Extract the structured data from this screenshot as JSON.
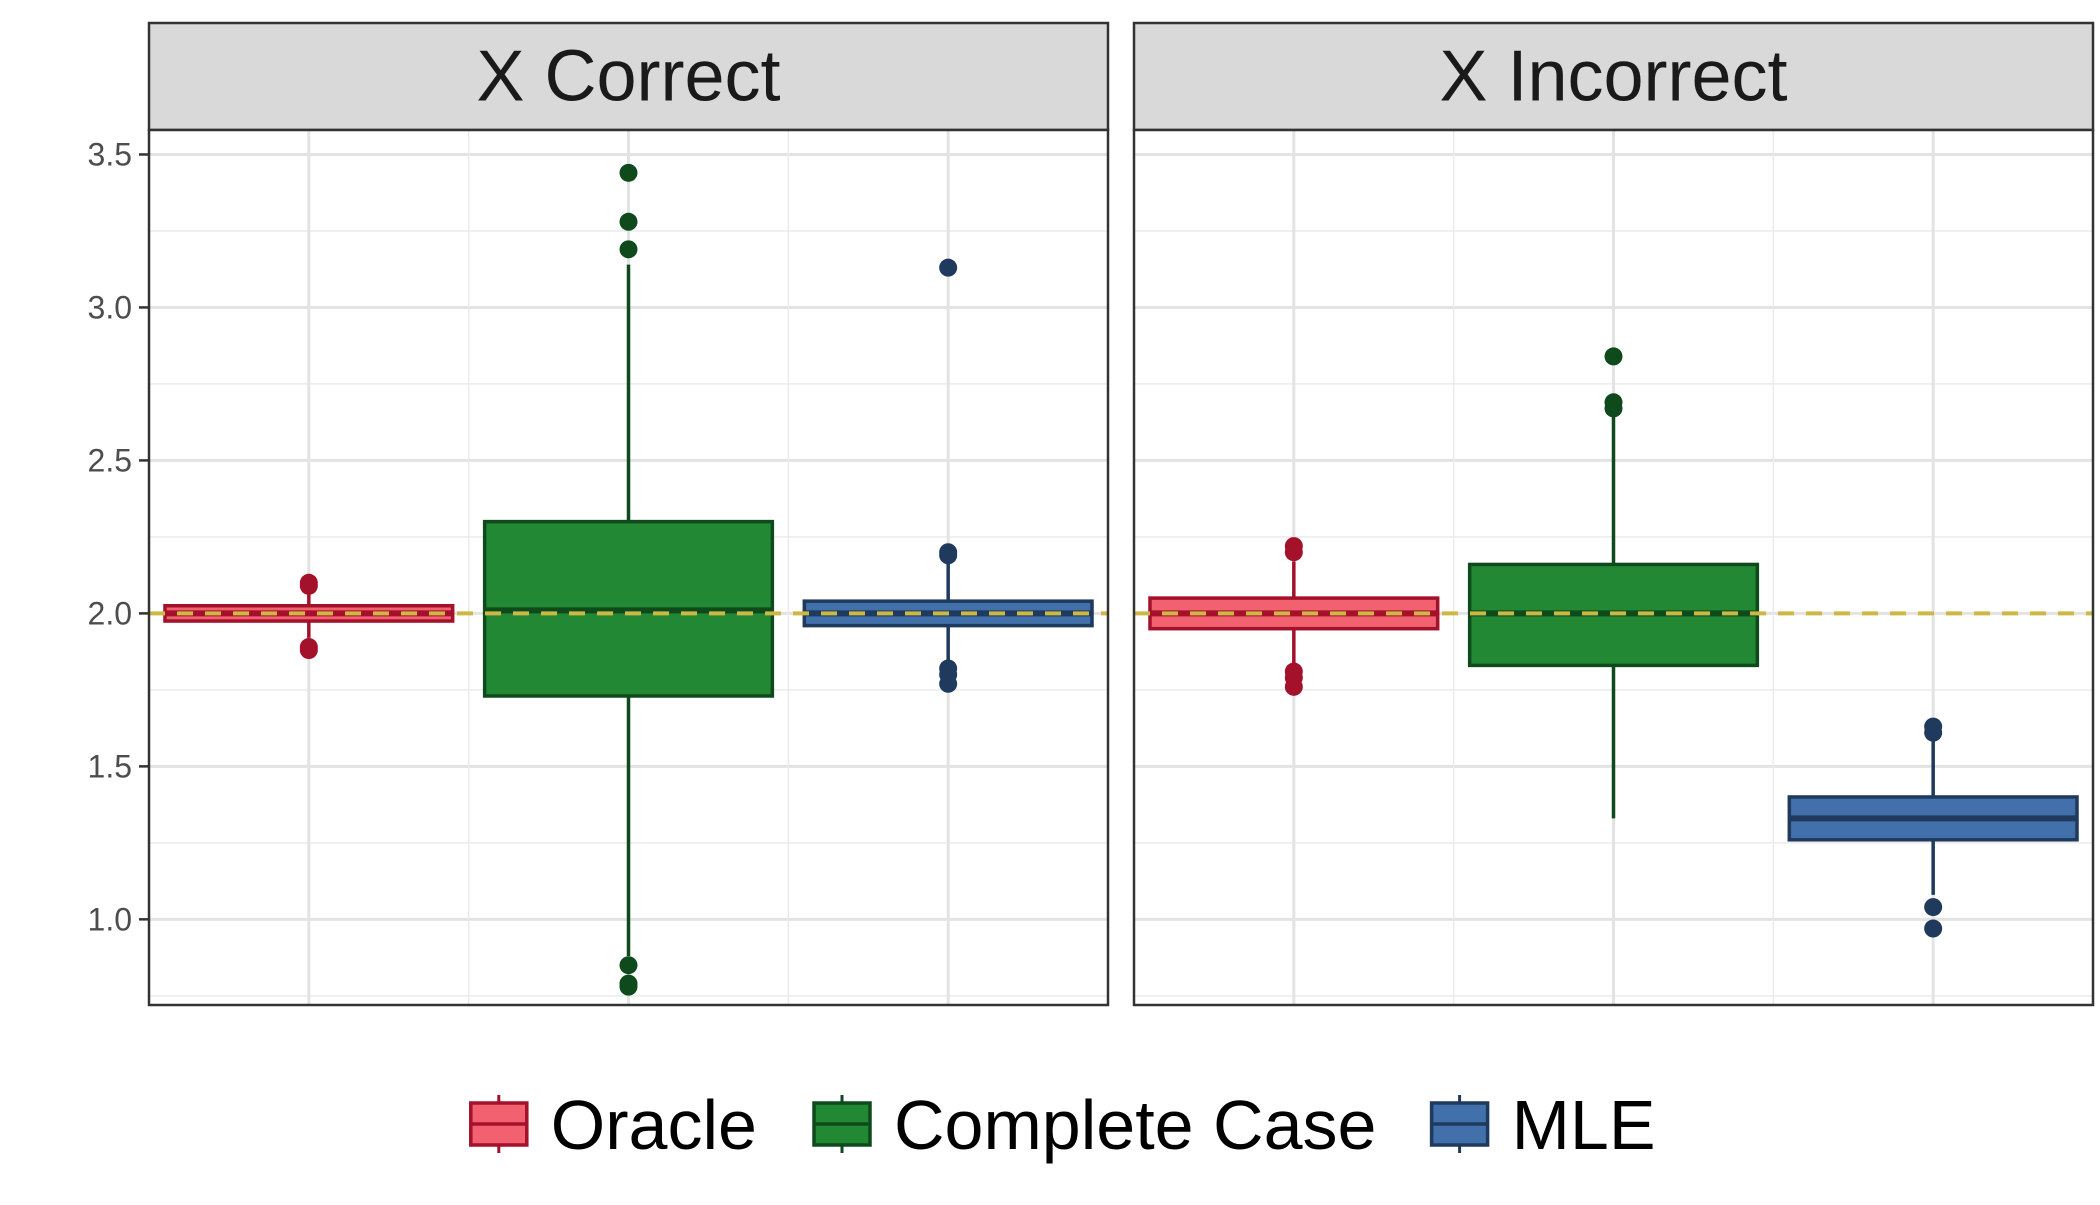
{
  "chart_data": {
    "type": "boxplot",
    "ylim": [
      0.72,
      3.58
    ],
    "y_ticks": [
      "1.0",
      "1.5",
      "2.0",
      "2.5",
      "3.0",
      "3.5"
    ],
    "grid": true,
    "reference_line": {
      "y": 2.0,
      "style": "dashed",
      "color": "#CDB844"
    },
    "legend": {
      "position": "bottom",
      "entries": [
        {
          "label": "Oracle",
          "fill": "#F2616F",
          "stroke": "#A3112A"
        },
        {
          "label": "Complete Case",
          "fill": "#228833",
          "stroke": "#0E4A1C"
        },
        {
          "label": "MLE",
          "fill": "#4170AA",
          "stroke": "#1F3A5C"
        }
      ]
    },
    "panels": [
      {
        "title": "X Correct",
        "boxes": [
          {
            "group": "Oracle",
            "q1": 1.975,
            "median": 2.0,
            "q3": 2.025,
            "whisker_low": 1.92,
            "whisker_high": 2.08,
            "outliers": [
              2.1,
              2.09,
              1.89,
              1.88
            ]
          },
          {
            "group": "Complete Case",
            "q1": 1.73,
            "median": 2.01,
            "q3": 2.3,
            "whisker_low": 0.88,
            "whisker_high": 3.14,
            "outliers": [
              3.44,
              3.28,
              3.19,
              0.85,
              0.79,
              0.78
            ]
          },
          {
            "group": "MLE",
            "q1": 1.96,
            "median": 2.0,
            "q3": 2.04,
            "whisker_low": 1.84,
            "whisker_high": 2.18,
            "outliers": [
              3.13,
              2.2,
              2.19,
              1.82,
              1.8,
              1.77
            ]
          }
        ]
      },
      {
        "title": "X Incorrect",
        "boxes": [
          {
            "group": "Oracle",
            "q1": 1.95,
            "median": 2.0,
            "q3": 2.05,
            "whisker_low": 1.83,
            "whisker_high": 2.17,
            "outliers": [
              2.22,
              2.2,
              1.81,
              1.79,
              1.76
            ]
          },
          {
            "group": "Complete Case",
            "q1": 1.83,
            "median": 2.0,
            "q3": 2.16,
            "whisker_low": 1.33,
            "whisker_high": 2.65,
            "outliers": [
              2.84,
              2.69,
              2.67
            ]
          },
          {
            "group": "MLE",
            "q1": 1.26,
            "median": 1.33,
            "q3": 1.4,
            "whisker_low": 1.08,
            "whisker_high": 1.6,
            "outliers": [
              1.63,
              1.61,
              1.04,
              0.97
            ]
          }
        ]
      }
    ]
  }
}
